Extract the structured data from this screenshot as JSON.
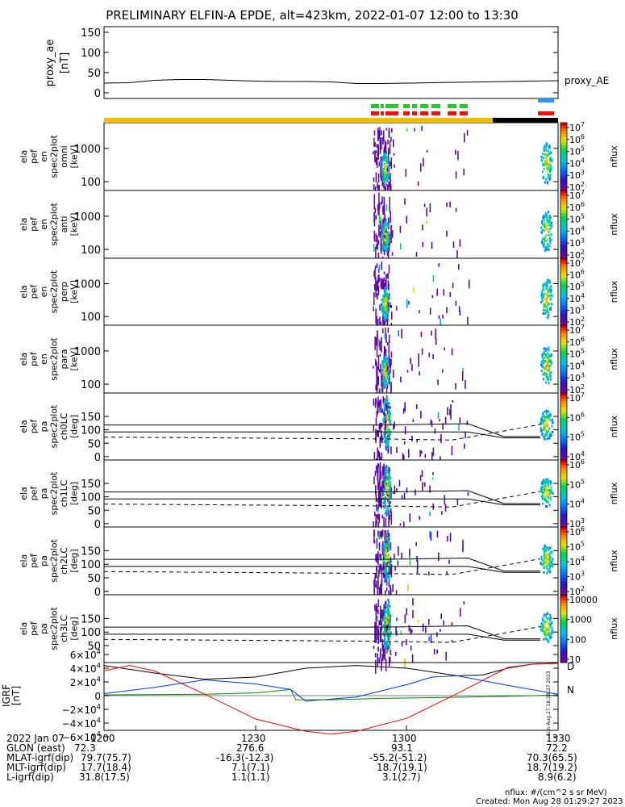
{
  "title": "PRELIMINARY ELFIN-A EPDE, alt=423km, 2022-01-07 12:00 to 13:30",
  "chart_data": [
    {
      "type": "line",
      "ylabel": [
        "proxy_ae",
        "[nT]"
      ],
      "legend": "proxy_AE",
      "ylim": [
        0,
        150
      ],
      "yticks": [
        "150",
        "100",
        "50",
        "0"
      ],
      "xlim": [
        0,
        90
      ],
      "series": [
        {
          "name": "proxy_AE",
          "x": [
            0,
            5,
            10,
            15,
            20,
            25,
            30,
            35,
            40,
            45,
            50,
            55,
            60,
            65,
            70,
            75,
            80,
            85,
            90
          ],
          "y": [
            24,
            25,
            31,
            33,
            33,
            31,
            29,
            28,
            28,
            27,
            23,
            23,
            24,
            25,
            26,
            27,
            28,
            29,
            30
          ]
        }
      ]
    },
    {
      "type": "heatmap",
      "ylabel": [
        "ela",
        "pef",
        "en",
        "spec2plot",
        "omni",
        "[keV]"
      ],
      "yticks": [
        "1000",
        "100"
      ],
      "colorbar": {
        "label": "nflux",
        "ticks": [
          "10^7",
          "10^6",
          "10^5",
          "10^4",
          "10^3",
          "10^2"
        ]
      }
    },
    {
      "type": "heatmap",
      "ylabel": [
        "ela",
        "pef",
        "en",
        "spec2plot",
        "anti",
        "[keV]"
      ],
      "yticks": [
        "1000",
        "100"
      ],
      "colorbar": {
        "label": "nflux",
        "ticks": [
          "10^7",
          "10^6",
          "10^5",
          "10^4",
          "10^3",
          "10^2"
        ]
      }
    },
    {
      "type": "heatmap",
      "ylabel": [
        "ela",
        "pef",
        "en",
        "spec2plot",
        "perp",
        "[keV]"
      ],
      "yticks": [
        "1000",
        "100"
      ],
      "colorbar": {
        "label": "nflux",
        "ticks": [
          "10^7",
          "10^6",
          "10^5",
          "10^4",
          "10^3",
          "10^2"
        ]
      }
    },
    {
      "type": "heatmap",
      "ylabel": [
        "ela",
        "pef",
        "en",
        "spec2plot",
        "para",
        "[keV]"
      ],
      "yticks": [
        "1000",
        "100"
      ],
      "colorbar": {
        "label": "nflux",
        "ticks": [
          "10^7",
          "10^6",
          "10^5",
          "10^4",
          "10^3",
          "10^2"
        ]
      }
    },
    {
      "type": "heatmap",
      "ylabel": [
        "ela",
        "pef",
        "pa",
        "spec2plot",
        "ch0LC",
        "[deg]"
      ],
      "yticks": [
        "150",
        "100",
        "50",
        "0"
      ],
      "colorbar": {
        "label": "nflux",
        "ticks": [
          "10^7",
          "10^6",
          "10^5",
          "10^4"
        ]
      }
    },
    {
      "type": "heatmap",
      "ylabel": [
        "ela",
        "pef",
        "pa",
        "spec2plot",
        "ch1LC",
        "[deg]"
      ],
      "yticks": [
        "150",
        "100",
        "50",
        "0"
      ],
      "colorbar": {
        "label": "nflux",
        "ticks": [
          "10^6",
          "10^5",
          "10^4",
          "10^3"
        ]
      }
    },
    {
      "type": "heatmap",
      "ylabel": [
        "ela",
        "pef",
        "pa",
        "spec2plot",
        "ch2LC",
        "[deg]"
      ],
      "yticks": [
        "150",
        "100",
        "50",
        "0"
      ],
      "colorbar": {
        "label": "nflux",
        "ticks": [
          "10^6",
          "10^5",
          "10^4",
          "10^3",
          "10^2"
        ]
      }
    },
    {
      "type": "heatmap",
      "ylabel": [
        "ela",
        "pef",
        "pa",
        "spec2plot",
        "ch3LC",
        "[deg]"
      ],
      "yticks": [
        "150",
        "100",
        "50"
      ],
      "colorbar": {
        "label": "nflux",
        "ticks": [
          "10000",
          "1000",
          "100",
          "10"
        ]
      }
    },
    {
      "type": "line",
      "ylabel": [
        "IGRF",
        "[nT]"
      ],
      "ylim": [
        -60000,
        60000
      ],
      "yticks": [
        "6×10^4",
        "4×10^4",
        "2×10^4",
        "0",
        "−2×10^4",
        "−4×10^4",
        "−6×10^4"
      ],
      "xlim": [
        0,
        90
      ],
      "series": [
        {
          "color": "#000000",
          "x": [
            0,
            10,
            20,
            30,
            40,
            50,
            60,
            70,
            75,
            80,
            85,
            90
          ],
          "y": [
            44000,
            33000,
            24000,
            27000,
            40000,
            44000,
            40000,
            29000,
            30000,
            40000,
            46000,
            47000
          ]
        },
        {
          "color": "#0033ff",
          "x": [
            0,
            10,
            20,
            30,
            37,
            40,
            50,
            60,
            65,
            70,
            80,
            90
          ],
          "y": [
            3000,
            12000,
            23000,
            17000,
            9000,
            -8000,
            -2000,
            16000,
            27000,
            29000,
            15000,
            2000
          ]
        },
        {
          "color": "#008800",
          "x": [
            0,
            20,
            30,
            37,
            38,
            45,
            55,
            65,
            80,
            90
          ],
          "y": [
            1000,
            2000,
            4000,
            9000,
            -6000,
            -6000,
            -4000,
            -3000,
            -1000,
            1000
          ]
        },
        {
          "color": "#ff0000",
          "x": [
            0,
            5,
            10,
            20,
            30,
            40,
            45,
            50,
            60,
            70,
            80,
            85,
            90
          ],
          "y": [
            36000,
            44000,
            36000,
            2000,
            -34000,
            -52000,
            -56000,
            -52000,
            -33000,
            3000,
            41000,
            46000,
            47000
          ]
        }
      ],
      "labels": [
        "D",
        "N"
      ]
    }
  ],
  "sidestamp": "Sun Aug 27 18:28:27 2023",
  "footer": {
    "row_labels": [
      "2022 Jan 07",
      "GLON (east)",
      "MLAT-igrf(dip)",
      "MLT-igrf(dip)",
      "L-igrf(dip)"
    ],
    "columns": [
      [
        "1200",
        "72.3",
        "79.7(75.7)",
        "17.7(18.4)",
        "31.8(17.5)"
      ],
      [
        "1230",
        "276.6",
        "-16.3(-12.3)",
        "7.1(7.1)",
        "1.1(1.1)"
      ],
      [
        "1300",
        "93.1",
        "-55.2(-51.2)",
        "18.7(19.1)",
        "3.1(2.7)"
      ],
      [
        "1330",
        "72.2",
        "70.3(65.5)",
        "18.7(19.2)",
        "8.9(6.2)"
      ]
    ],
    "note1": "nflux: #/(cm^2 s sr MeV)",
    "note2": "Created: Mon Aug 28 01:29:27 2023"
  }
}
